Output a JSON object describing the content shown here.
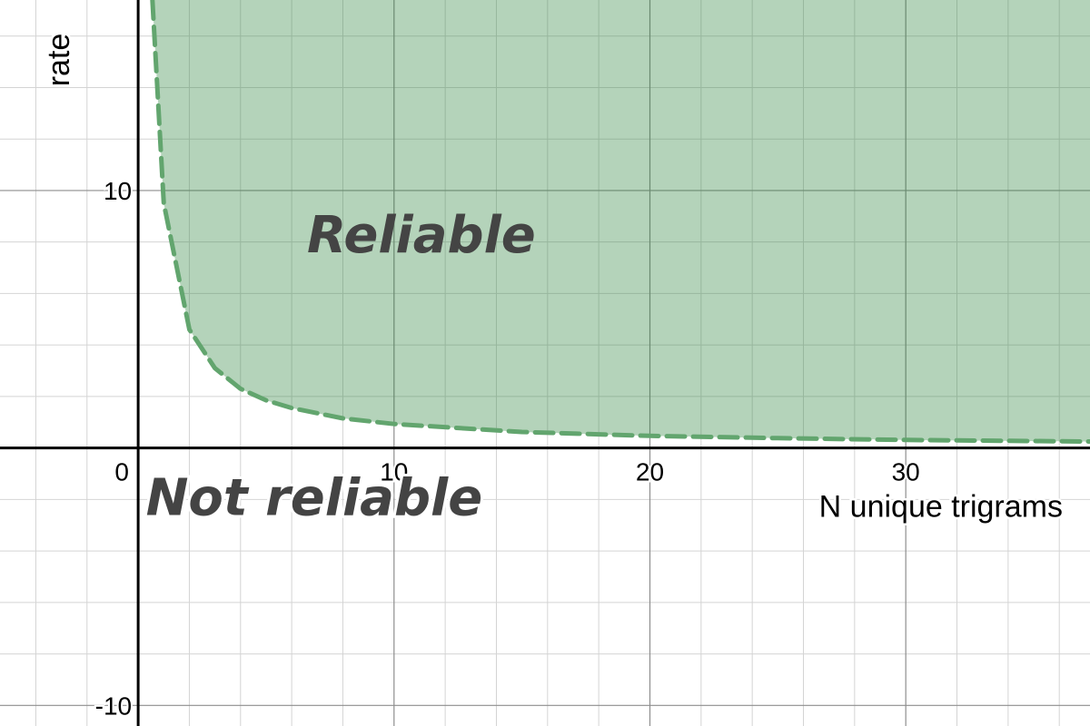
{
  "chart_data": {
    "type": "area",
    "xlabel": "N unique trigrams",
    "ylabel": "rate",
    "xlim": [
      -5.4,
      37.2
    ],
    "ylim": [
      -10.8,
      17.4
    ],
    "x_ticks": [
      0,
      10,
      20,
      30
    ],
    "x_tick_labels": [
      "0",
      "10",
      "20",
      "30"
    ],
    "y_ticks": [
      10,
      -10
    ],
    "y_tick_labels": [
      "10",
      "-10"
    ],
    "minor_grid_step": 2,
    "major_grid_step": 10,
    "grid": true,
    "boundary": {
      "style": "dashed",
      "x": [
        0.5,
        1,
        2,
        3,
        4,
        5,
        6,
        8,
        10,
        15,
        20,
        25,
        30,
        37
      ],
      "y": [
        20,
        9.5,
        4.6,
        3.1,
        2.3,
        1.85,
        1.55,
        1.15,
        0.93,
        0.62,
        0.47,
        0.38,
        0.31,
        0.25
      ]
    },
    "regions": [
      {
        "label": "Reliable",
        "anchor_x": 6.6,
        "anchor_y": 7.6,
        "shaded": true
      },
      {
        "label": "Not reliable",
        "anchor_x": 0.3,
        "anchor_y": -2.6,
        "shaded": false
      }
    ],
    "colors": {
      "fill": "#2e8540",
      "fill_opacity": 0.36,
      "line": "#62a56e",
      "grid_minor": "#d4d4d4",
      "grid_major": "#8e8e8e",
      "axis": "#000000"
    }
  }
}
